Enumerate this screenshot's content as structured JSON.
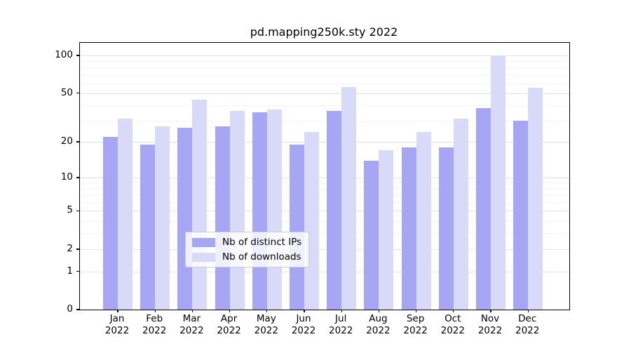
{
  "chart_data": {
    "type": "bar",
    "title": "pd.mapping250k.sty 2022",
    "categories": [
      "Jan",
      "Feb",
      "Mar",
      "Apr",
      "May",
      "Jun",
      "Jul",
      "Aug",
      "Sep",
      "Oct",
      "Nov",
      "Dec"
    ],
    "category_year": "2022",
    "series": [
      {
        "name": "Nb of distinct IPs",
        "color": "#a6a6f4",
        "values": [
          22,
          19,
          26,
          27,
          35,
          19,
          36,
          14,
          18,
          18,
          38,
          30
        ]
      },
      {
        "name": "Nb of downloads",
        "color": "#d9d9fa",
        "values": [
          31,
          27,
          44,
          36,
          37,
          24,
          56,
          17,
          24,
          31,
          100,
          55
        ]
      }
    ],
    "xlabel": "",
    "ylabel": "",
    "y_axis": {
      "scale": "log1p",
      "ticks": [
        0,
        1,
        2,
        5,
        10,
        20,
        50,
        100
      ],
      "minor_gridlines": [
        3,
        4,
        6,
        7,
        8,
        9,
        30,
        40,
        60,
        70,
        80,
        90
      ],
      "ylim": [
        0,
        126
      ]
    },
    "grid": true,
    "legend_position": "bottom-center",
    "colors": {
      "grid_major": "#e2e2e2",
      "grid_minor": "#f4f4f4",
      "axis_frame": "#000000",
      "background": "#ffffff"
    }
  }
}
